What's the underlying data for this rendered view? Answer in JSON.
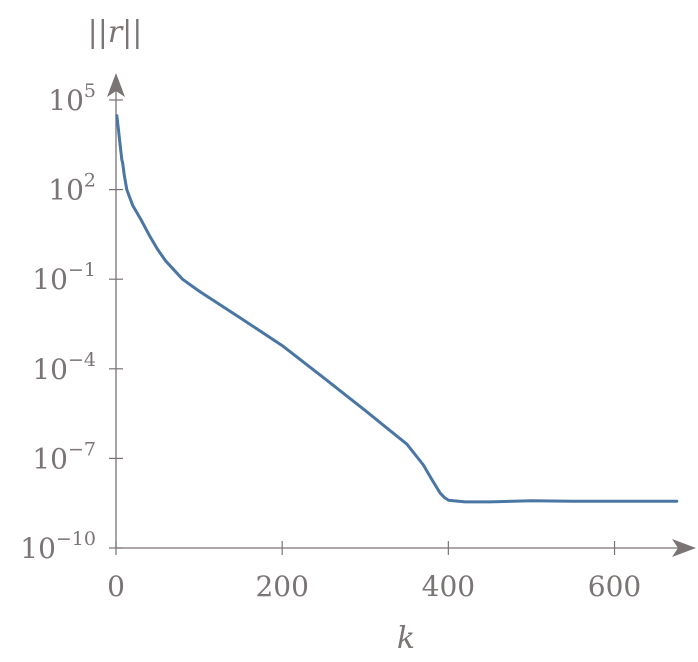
{
  "chart_data": {
    "type": "line",
    "xlabel": "k",
    "ylabel": "||r||",
    "yscale": "log",
    "xlim": [
      0,
      680
    ],
    "ylim": [
      1e-10,
      100000.0
    ],
    "grid": false,
    "x_ticks": [
      {
        "value": 0,
        "label": "0"
      },
      {
        "value": 200,
        "label": "200"
      },
      {
        "value": 400,
        "label": "400"
      },
      {
        "value": 600,
        "label": "600"
      }
    ],
    "y_ticks": [
      {
        "value": 100000.0,
        "base": "10",
        "exp": "5"
      },
      {
        "value": 100.0,
        "base": "10",
        "exp": "2"
      },
      {
        "value": 0.1,
        "base": "10",
        "exp": "−1"
      },
      {
        "value": 0.0001,
        "base": "10",
        "exp": "−4"
      },
      {
        "value": 1e-07,
        "base": "10",
        "exp": "−7"
      },
      {
        "value": 1e-10,
        "base": "10",
        "exp": "−10"
      }
    ],
    "series": [
      {
        "color": "#4a76a4",
        "points": [
          [
            1,
            30000
          ],
          [
            3,
            10000
          ],
          [
            5,
            3000
          ],
          [
            7,
            1000
          ],
          [
            8,
            800
          ],
          [
            10,
            300
          ],
          [
            13,
            100
          ],
          [
            20,
            30
          ],
          [
            30,
            10
          ],
          [
            40,
            3
          ],
          [
            50,
            1
          ],
          [
            60,
            0.4
          ],
          [
            80,
            0.1
          ],
          [
            100,
            0.04
          ],
          [
            150,
            0.005
          ],
          [
            200,
            0.0006
          ],
          [
            250,
            5e-05
          ],
          [
            300,
            4e-06
          ],
          [
            350,
            3e-07
          ],
          [
            370,
            6e-08
          ],
          [
            380,
            2e-08
          ],
          [
            390,
            7e-09
          ],
          [
            395,
            5e-09
          ],
          [
            400,
            4e-09
          ],
          [
            420,
            3.5e-09
          ],
          [
            450,
            3.5e-09
          ],
          [
            500,
            3.8e-09
          ],
          [
            550,
            3.7e-09
          ],
          [
            600,
            3.7e-09
          ],
          [
            650,
            3.7e-09
          ],
          [
            675,
            3.7e-09
          ]
        ]
      }
    ]
  }
}
